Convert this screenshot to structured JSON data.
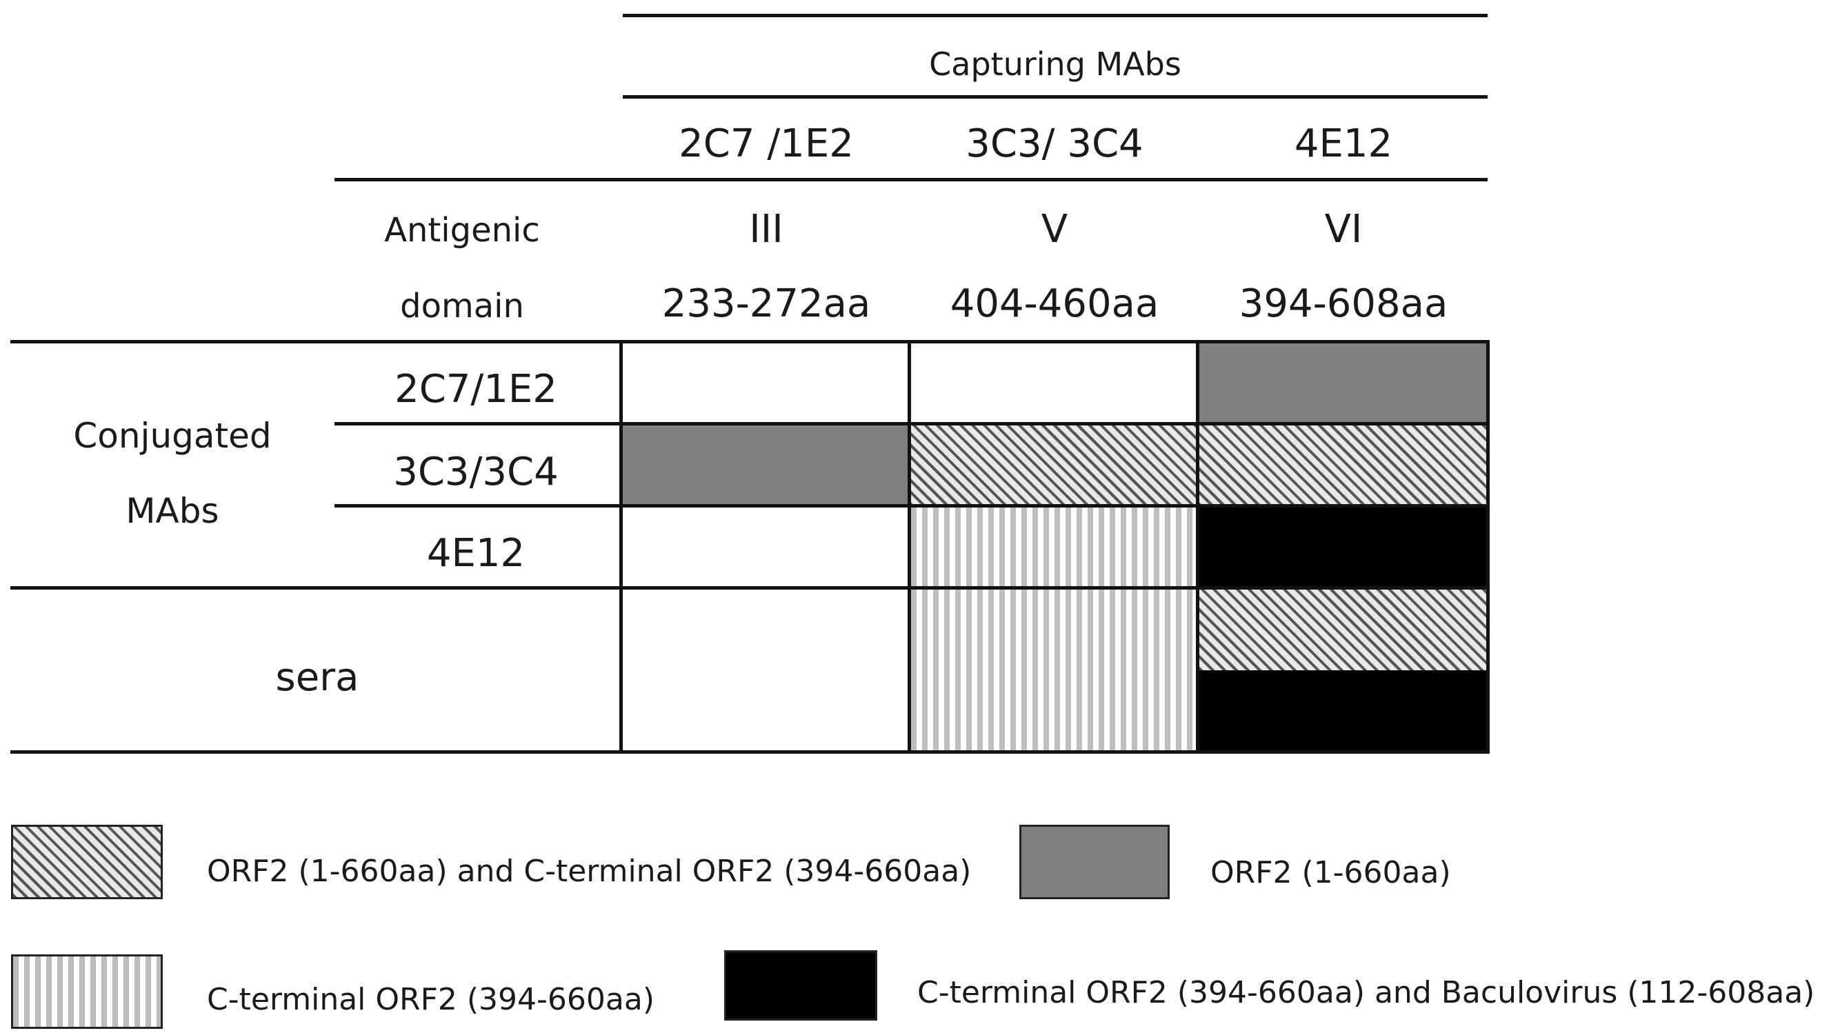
{
  "header": {
    "capturing_title": "Capturing MAbs",
    "columns": [
      {
        "mab": "2C7 /1E2",
        "domain": "III",
        "range": "233-272aa"
      },
      {
        "mab": "3C3/ 3C4",
        "domain": "V",
        "range": "404-460aa"
      },
      {
        "mab": "4E12",
        "domain": "VI",
        "range": "394-608aa"
      }
    ],
    "antigenic_label_line1": "Antigenic",
    "antigenic_label_line2": "domain"
  },
  "rows": {
    "group_label_line1": "Conjugated",
    "group_label_line2": "MAbs",
    "conjugated": [
      "2C7/1E2",
      "3C3/3C4",
      "4E12"
    ],
    "sera_label": "sera"
  },
  "cells": [
    {
      "row": "2C7/1E2",
      "column": "4E12",
      "pattern": "gray"
    },
    {
      "row": "3C3/3C4",
      "column": "2C7 /1E2",
      "pattern": "gray"
    },
    {
      "row": "3C3/3C4",
      "column": "3C3/ 3C4",
      "pattern": "diagonal"
    },
    {
      "row": "3C3/3C4",
      "column": "4E12",
      "pattern": "diagonal"
    },
    {
      "row": "4E12",
      "column": "3C3/ 3C4",
      "pattern": "vertical"
    },
    {
      "row": "4E12",
      "column": "4E12",
      "pattern": "black"
    },
    {
      "row": "sera",
      "column": "3C3/ 3C4",
      "pattern": "vertical"
    },
    {
      "row": "sera",
      "column": "4E12",
      "pattern": "diagonal+black"
    }
  ],
  "legend": [
    {
      "pattern": "diagonal",
      "label": "ORF2 (1-660aa) and C-terminal ORF2 (394-660aa)"
    },
    {
      "pattern": "gray",
      "label": "ORF2 (1-660aa)"
    },
    {
      "pattern": "vertical",
      "label": "C-terminal ORF2 (394-660aa)"
    },
    {
      "pattern": "black",
      "label": "C-terminal ORF2 (394-660aa) and Baculovirus (112-608aa)"
    }
  ],
  "colors": {
    "gray_fill": "#808080",
    "black_fill": "#000000",
    "line": "#111111"
  }
}
